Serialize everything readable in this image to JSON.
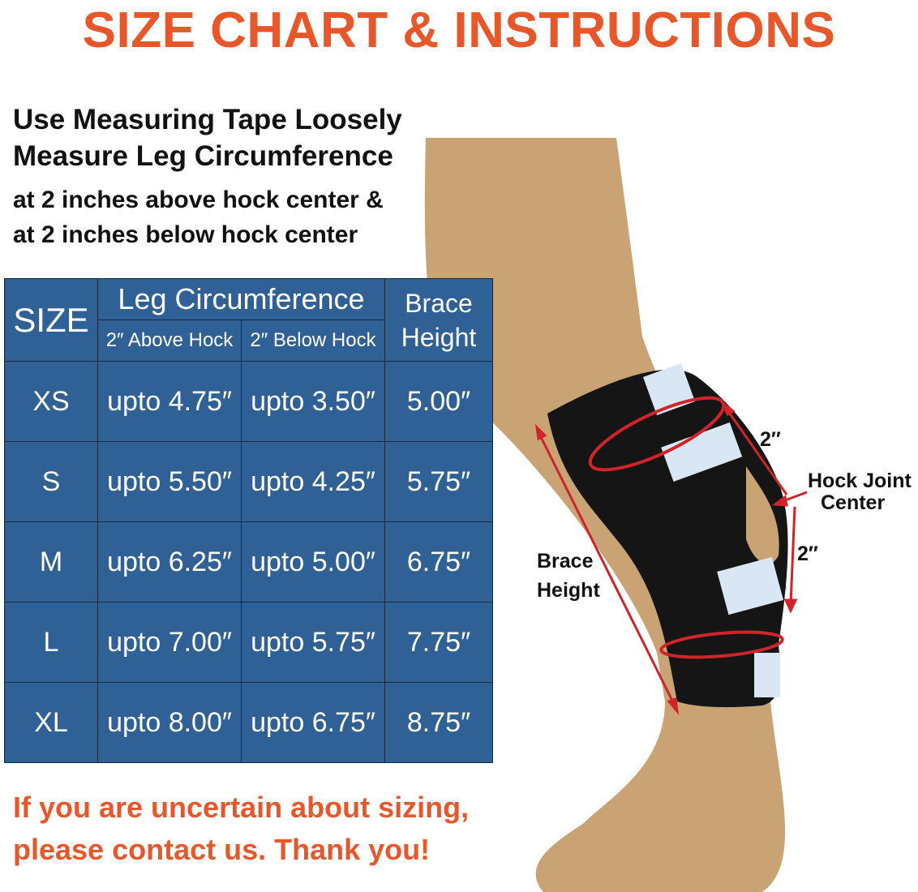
{
  "title": "SIZE CHART & INSTRUCTIONS",
  "instructions": [
    "Use Measuring Tape Loosely",
    "Measure Leg Circumference",
    "at 2 inches above hock center &",
    "at 2 inches below hock center"
  ],
  "table": {
    "size_header": "SIZE",
    "leg_header": "Leg Circumference",
    "above_header": "2″ Above Hock",
    "below_header": "2″ Below Hock",
    "brace_header_1": "Brace",
    "brace_header_2": "Height",
    "rows": [
      {
        "size": "XS",
        "above": "upto 4.75″",
        "below": "upto 3.50″",
        "height": "5.00″"
      },
      {
        "size": "S",
        "above": "upto 5.50″",
        "below": "upto 4.25″",
        "height": "5.75″"
      },
      {
        "size": "M",
        "above": "upto 6.25″",
        "below": "upto 5.00″",
        "height": "6.75″"
      },
      {
        "size": "L",
        "above": "upto 7.00″",
        "below": "upto 5.75″",
        "height": "7.75″"
      },
      {
        "size": "XL",
        "above": "upto 8.00″",
        "below": "upto 6.75″",
        "height": "8.75″"
      }
    ]
  },
  "diagram": {
    "top_distance": "2″",
    "bottom_distance": "2″",
    "hock_label_1": "Hock Joint",
    "hock_label_2": "Center",
    "brace_label_1": "Brace",
    "brace_label_2": "Height"
  },
  "note": [
    "If you are uncertain about sizing,",
    "please contact us. Thank you!"
  ],
  "colors": {
    "accent": "#e8572a",
    "table_bg": "#2f6096",
    "arrow": "#d0232a"
  }
}
